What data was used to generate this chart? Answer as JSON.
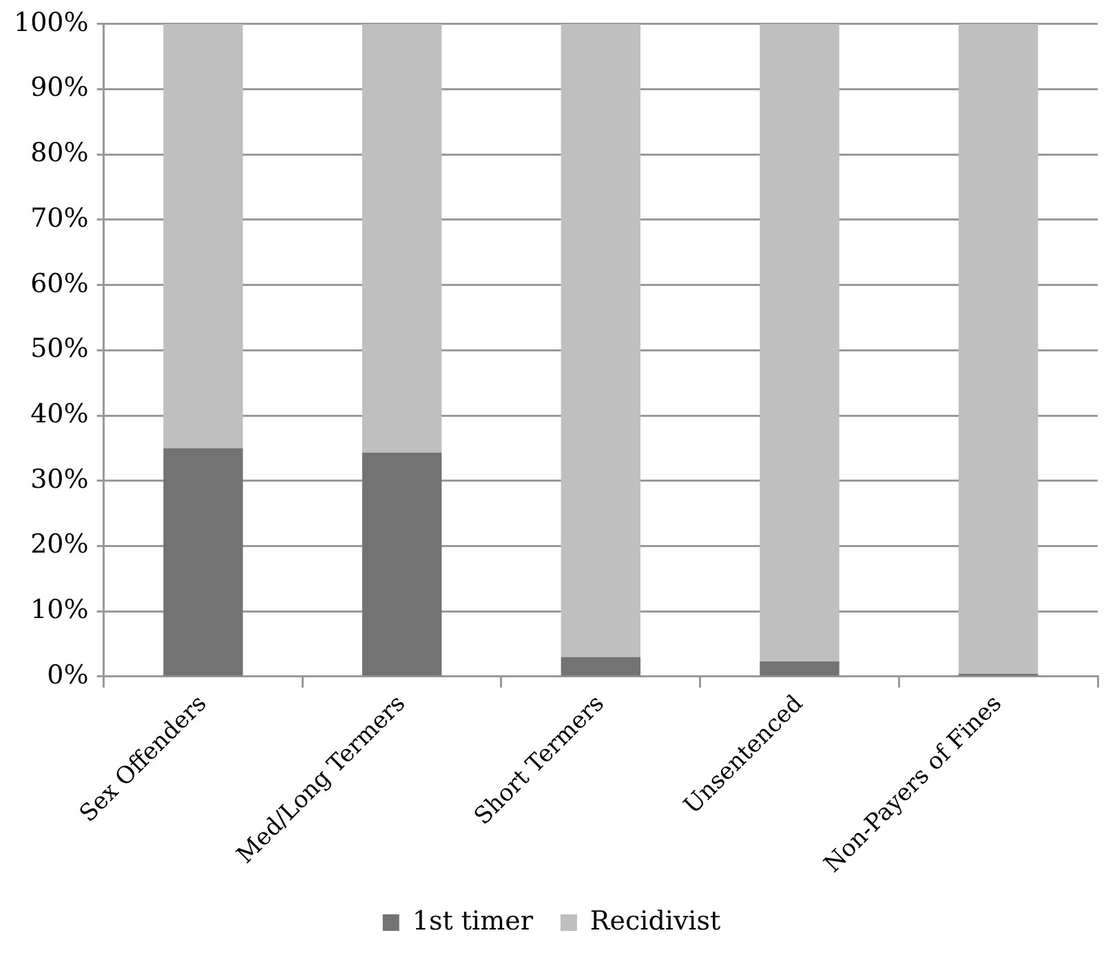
{
  "chart_data": {
    "type": "bar",
    "stacked": true,
    "categories": [
      "Sex Offenders",
      "Med/Long Termers",
      "Short Termers",
      "Unsentenced",
      "Non-Payers of Fines"
    ],
    "series": [
      {
        "name": "1st timer",
        "color": "#737373",
        "values": [
          35,
          34.3,
          3,
          2.3,
          0.4
        ]
      },
      {
        "name": "Recidivist",
        "color": "#bfbfbf",
        "values": [
          65,
          65.7,
          97,
          97.7,
          99.6
        ]
      }
    ],
    "ylim": [
      0,
      100
    ],
    "yticks": [
      {
        "value": 0,
        "label": "0%"
      },
      {
        "value": 10,
        "label": "10%"
      },
      {
        "value": 20,
        "label": "20%"
      },
      {
        "value": 30,
        "label": "30%"
      },
      {
        "value": 40,
        "label": "40%"
      },
      {
        "value": 50,
        "label": "50%"
      },
      {
        "value": 60,
        "label": "60%"
      },
      {
        "value": 70,
        "label": "70%"
      },
      {
        "value": 80,
        "label": "80%"
      },
      {
        "value": 90,
        "label": "90%"
      },
      {
        "value": 100,
        "label": "100%"
      }
    ],
    "grid": "y",
    "legend": "bottom"
  }
}
